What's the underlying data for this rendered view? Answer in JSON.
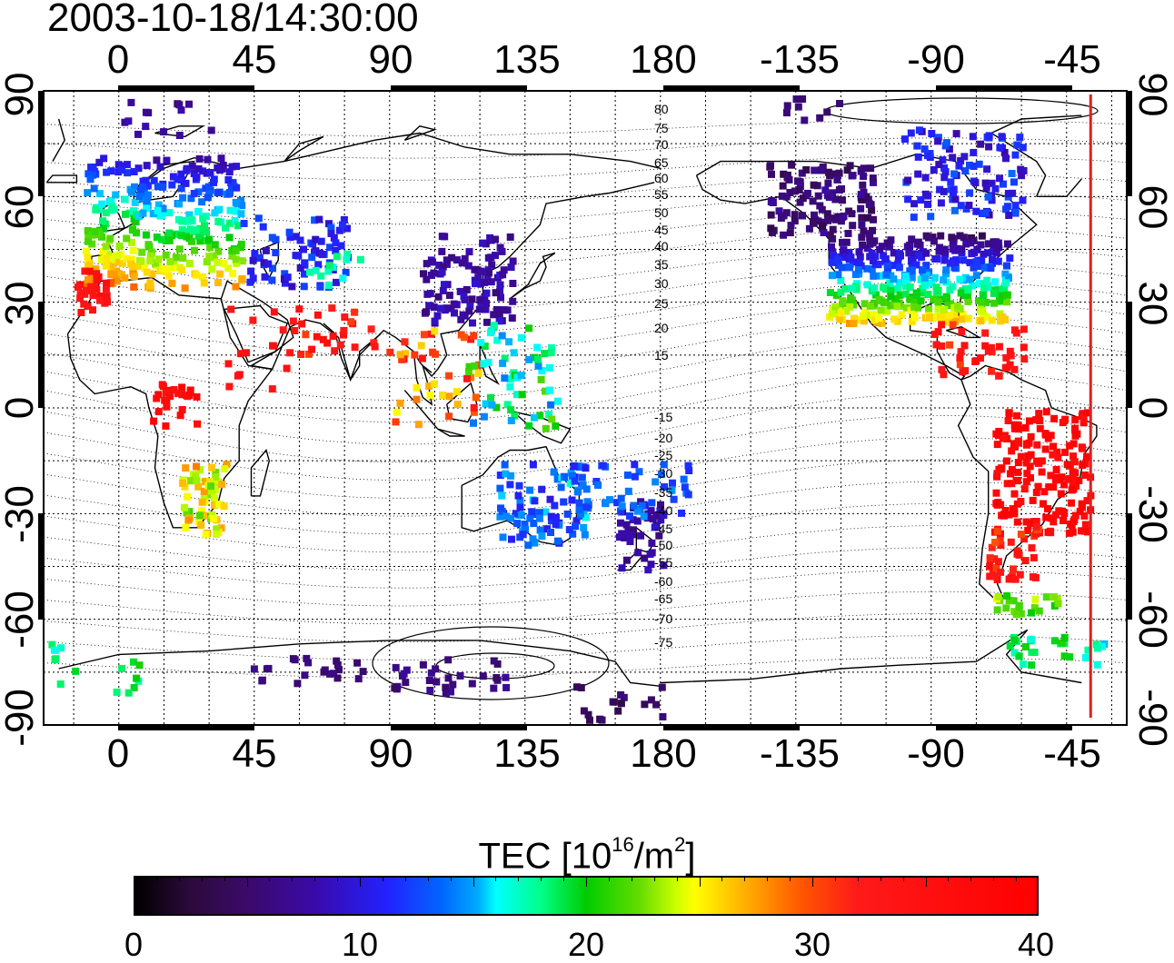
{
  "title": "2003-10-18/14:30:00",
  "map": {
    "lon_ticks": [
      "0",
      "45",
      "90",
      "135",
      "180",
      "-135",
      "-90",
      "-45"
    ],
    "lat_ticks_left": [
      "90",
      "60",
      "30",
      "0",
      "-30",
      "-60",
      "-90"
    ],
    "lat_ticks_right": [
      "90",
      "60",
      "30",
      "0",
      "-30",
      "-60",
      "-90"
    ],
    "magnetic_latitude_labels": [
      "80",
      "75",
      "70",
      "65",
      "60",
      "55",
      "50",
      "45",
      "40",
      "35",
      "30",
      "25",
      "20",
      "15",
      "-15",
      "-20",
      "-25",
      "-30",
      "-35",
      "-40",
      "-45",
      "-50",
      "-55",
      "-60",
      "-65",
      "-70",
      "-75"
    ],
    "terminator_color": "#e02020",
    "terminator_longitude": -37
  },
  "colorbar": {
    "label_prefix": "TEC  [10",
    "label_exp": "16",
    "label_mid": "/m",
    "label_exp2": "2",
    "label_suffix": "]",
    "ticks": [
      "0",
      "10",
      "20",
      "30",
      "40"
    ],
    "range": [
      0,
      40
    ]
  }
}
